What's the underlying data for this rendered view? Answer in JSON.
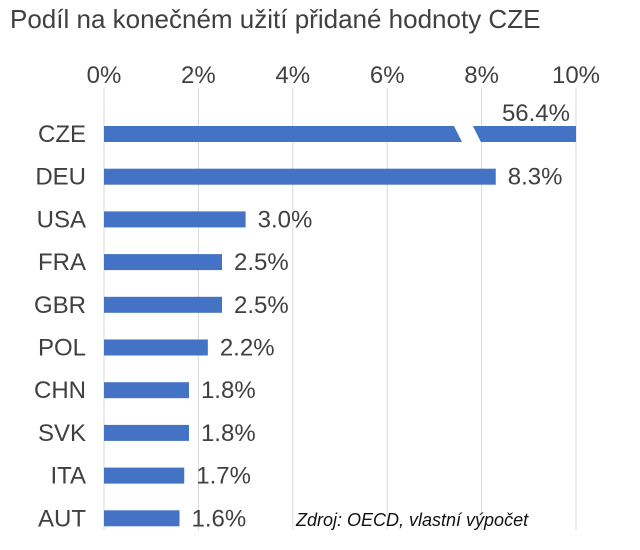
{
  "title": "Podíl na konečném užití přidané hodnoty CZE",
  "source": "Zdroj: OECD, vlastní výpočet",
  "colors": {
    "bar": "#4472C4",
    "grid": "#D9D9D9",
    "text": "#404040"
  },
  "chart_data": {
    "type": "bar",
    "orientation": "horizontal",
    "title": "Podíl na konečném užití přidané hodnoty CZE",
    "categories": [
      "CZE",
      "DEU",
      "USA",
      "FRA",
      "GBR",
      "POL",
      "CHN",
      "SVK",
      "ITA",
      "AUT"
    ],
    "values": [
      56.4,
      8.3,
      3.0,
      2.5,
      2.5,
      2.2,
      1.8,
      1.8,
      1.7,
      1.6
    ],
    "data_labels": [
      "56.4%",
      "8.3%",
      "3.0%",
      "2.5%",
      "2.5%",
      "2.2%",
      "1.8%",
      "1.8%",
      "1.7%",
      "1.6%"
    ],
    "xlim": [
      0,
      10
    ],
    "x_ticks": [
      0,
      2,
      4,
      6,
      8,
      10
    ],
    "x_tick_labels": [
      "0%",
      "2%",
      "4%",
      "6%",
      "8%",
      "10%"
    ],
    "x_axis_position": "top",
    "axis_break": {
      "category": "CZE",
      "note": "bar exceeds axis maximum and is shown with a break"
    },
    "grid": true,
    "legend": false
  }
}
